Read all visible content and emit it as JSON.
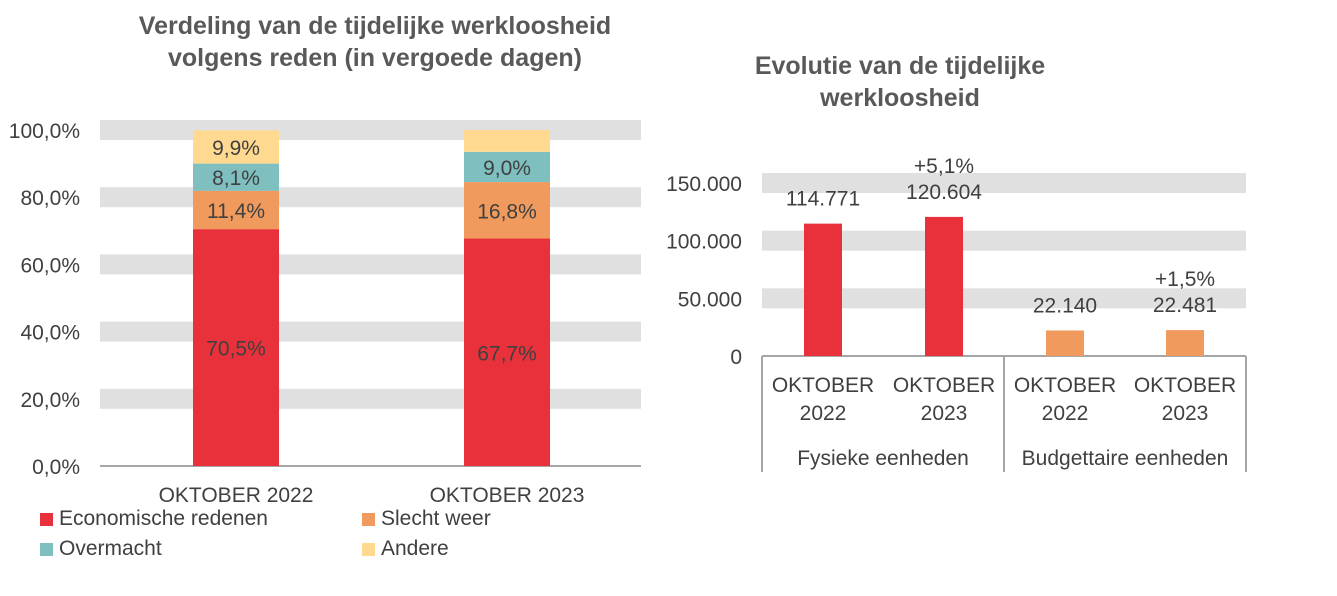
{
  "chart_data": [
    {
      "type": "bar",
      "stacked": true,
      "title": "Verdeling van de tijdelijke werkloosheid volgens reden (in vergoede dagen)",
      "categories": [
        "OKTOBER 2022",
        "OKTOBER 2023"
      ],
      "ylim": [
        0,
        100
      ],
      "yticks": [
        "0,0%",
        "20,0%",
        "40,0%",
        "60,0%",
        "80,0%",
        "100,0%"
      ],
      "series": [
        {
          "name": "Economische redenen",
          "color": "#E8313A",
          "values": [
            70.5,
            67.7
          ],
          "labels": [
            "70,5%",
            "67,7%"
          ]
        },
        {
          "name": "Slecht weer",
          "color": "#F19A5E",
          "values": [
            11.4,
            16.8
          ],
          "labels": [
            "11,4%",
            "16,8%"
          ]
        },
        {
          "name": "Overmacht",
          "color": "#7FBFBF",
          "values": [
            8.1,
            9.0
          ],
          "labels": [
            "8,1%",
            "9,0%"
          ]
        },
        {
          "name": "Andere",
          "color": "#FFD98F",
          "values": [
            9.9,
            6.5
          ],
          "labels": [
            "9,9%",
            ""
          ]
        }
      ],
      "legend": "bottom",
      "grid": "alternating bands"
    },
    {
      "type": "bar",
      "title": "Evolutie van de tijdelijke werkloosheid",
      "categories": [
        "OKTOBER 2022",
        "OKTOBER 2023",
        "OKTOBER 2022",
        "OKTOBER 2023"
      ],
      "groups": [
        "Fysieke eenheden",
        "Budgettaire eenheden"
      ],
      "values": [
        114771,
        120604,
        22140,
        22481
      ],
      "labels": [
        "114.771",
        "120.604",
        "22.140",
        "22.481"
      ],
      "annotations": [
        "",
        "+5,1%",
        "",
        "+1,5%"
      ],
      "colors": [
        "#E8313A",
        "#E8313A",
        "#F19A5E",
        "#F19A5E"
      ],
      "ylim": [
        0,
        150000
      ],
      "yticks": [
        "0",
        "50.000",
        "100.000",
        "150.000"
      ]
    }
  ]
}
